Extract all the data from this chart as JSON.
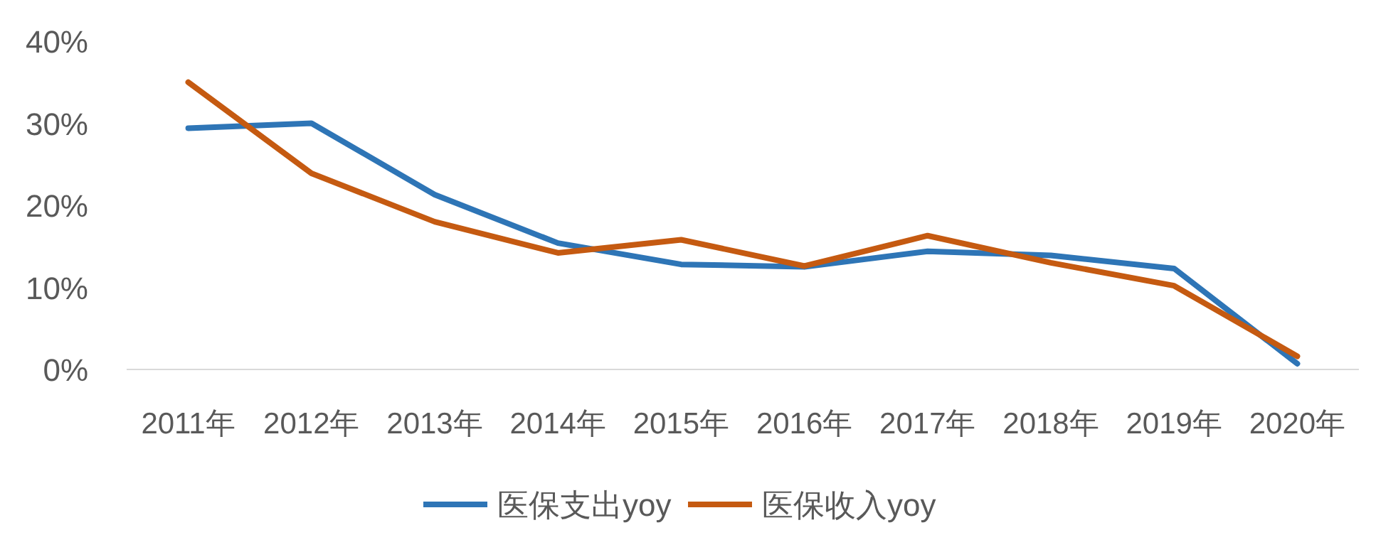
{
  "chart_data": {
    "type": "line",
    "categories": [
      "2011年",
      "2012年",
      "2013年",
      "2014年",
      "2015年",
      "2016年",
      "2017年",
      "2018年",
      "2019年",
      "2020年"
    ],
    "series": [
      {
        "name": "医保支出yoy",
        "color": "#2e75b6",
        "values": [
          29.4,
          30.0,
          21.3,
          15.4,
          12.8,
          12.5,
          14.4,
          13.9,
          12.3,
          0.7
        ]
      },
      {
        "name": "医保收入yoy",
        "color": "#c55a11",
        "values": [
          35.0,
          23.9,
          18.0,
          14.2,
          15.8,
          12.6,
          16.3,
          13.0,
          10.2,
          1.6
        ]
      }
    ],
    "ylim": [
      0,
      40
    ],
    "yticks": [
      {
        "value": 0,
        "label": "0%"
      },
      {
        "value": 10,
        "label": "10%"
      },
      {
        "value": 20,
        "label": "20%"
      },
      {
        "value": 30,
        "label": "30%"
      },
      {
        "value": 40,
        "label": "40%"
      }
    ],
    "legend": "bottom",
    "marker": "none",
    "line_style": "solid"
  }
}
